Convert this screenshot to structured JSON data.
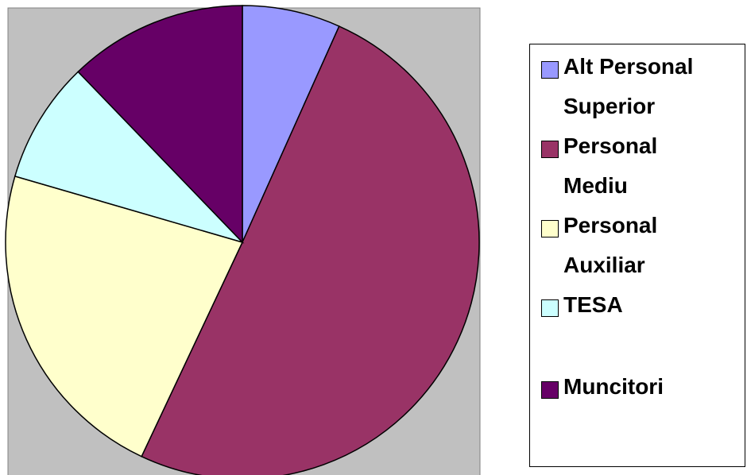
{
  "chart_data": {
    "type": "pie",
    "categories": [
      "Alt Personal Superior",
      "Personal Mediu",
      "Personal Auxiliar",
      "TESA",
      "Muncitori"
    ],
    "values": [
      6.7,
      50.3,
      22.5,
      8.3,
      12.2
    ],
    "colors": [
      "#9999ff",
      "#993366",
      "#ffffcc",
      "#ccffff",
      "#660066"
    ],
    "legend": "right"
  }
}
